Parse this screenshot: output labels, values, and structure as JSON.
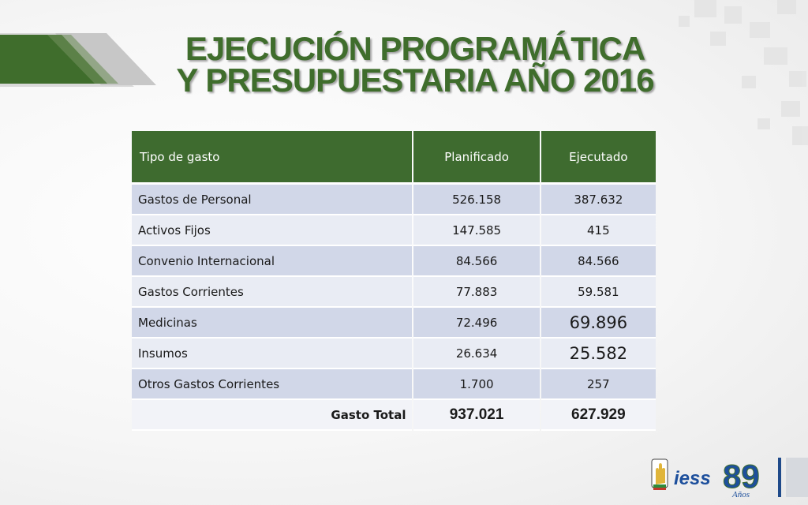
{
  "slide": {
    "title_line1": "EJECUCIÓN PROGRAMÁTICA",
    "title_line2": "Y PRESUPUESTARIA AÑO 2016"
  },
  "table": {
    "headers": [
      "Tipo de gasto",
      "Planificado",
      "Ejecutado"
    ],
    "rows": [
      [
        "Gastos de Personal",
        "526.158",
        "387.632"
      ],
      [
        "Activos Fijos",
        "147.585",
        "415"
      ],
      [
        "Convenio Internacional",
        "84.566",
        "84.566"
      ],
      [
        "Gastos Corrientes",
        "77.883",
        "59.581"
      ],
      [
        "Medicinas",
        "72.496",
        "69.896"
      ],
      [
        "Insumos",
        "26.634",
        "25.582"
      ],
      [
        "Otros Gastos Corrientes",
        "1.700",
        "257"
      ]
    ],
    "total": {
      "label": "Gasto Total",
      "planificado": "937.021",
      "ejecutado": "627.929"
    }
  },
  "logo": {
    "brand": "iess",
    "years_number": "89",
    "years_word": "Años"
  },
  "colors": {
    "accent_green": "#3e6b2f",
    "row_dark": "#d1d7e8",
    "row_light": "#e9ecf4",
    "logo_blue": "#1d4f9c"
  }
}
